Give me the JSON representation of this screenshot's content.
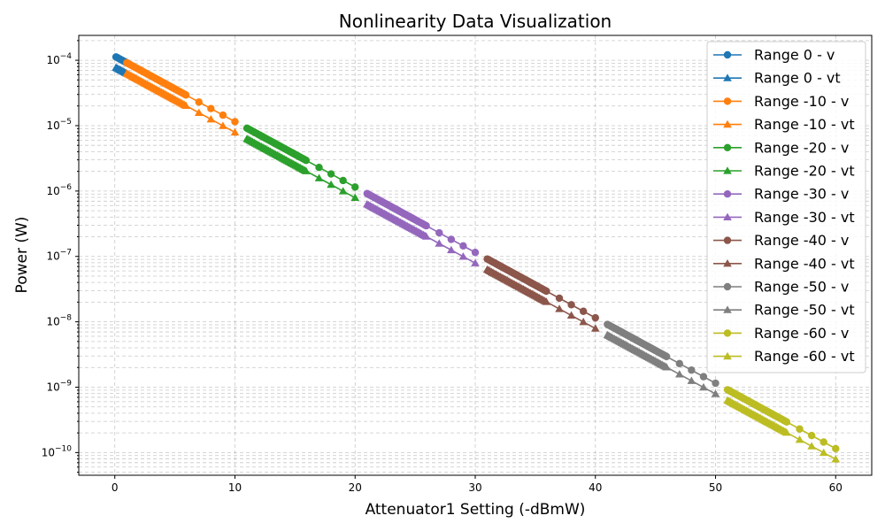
{
  "chart_data": {
    "type": "line",
    "title": "Nonlinearity Data Visualization",
    "xlabel": "Attenuator1 Setting (-dBmW)",
    "ylabel": "Power (W)",
    "xlim": [
      -3,
      63
    ],
    "ylim": [
      4.5e-11,
      0.00024
    ],
    "yscale": "log",
    "grid": true,
    "legend_position": "top-right",
    "x_ticks": [
      0,
      10,
      20,
      30,
      40,
      50,
      60
    ],
    "x_tick_labels": [
      "0",
      "10",
      "20",
      "30",
      "40",
      "50",
      "60"
    ],
    "y_ticks": [
      1e-10,
      1e-09,
      1e-08,
      1e-07,
      1e-06,
      1e-05,
      0.0001
    ],
    "y_tick_labels": [
      "10-10",
      "10-9",
      "10-8",
      "10-7",
      "10-6",
      "10-5",
      "10-4"
    ],
    "series": [
      {
        "name": "Range 0 - v",
        "marker": "circle",
        "color": "#1f77b4",
        "x_start": 0.1,
        "x_end": 1,
        "y_at_x0": 0.000115
      },
      {
        "name": "Range 0 - vt",
        "marker": "triangle",
        "color": "#1f77b4",
        "x_start": 0.1,
        "x_end": 1,
        "y_at_x0": 7.9e-05
      },
      {
        "name": "Range -10 - v",
        "marker": "circle",
        "color": "#ff7f0e",
        "x_start": 1,
        "x_end": 10,
        "y_at_x0": 0.000115
      },
      {
        "name": "Range -10 - vt",
        "marker": "triangle",
        "color": "#ff7f0e",
        "x_start": 1,
        "x_end": 10,
        "y_at_x0": 7.9e-05
      },
      {
        "name": "Range -20 - v",
        "marker": "circle",
        "color": "#2ca02c",
        "x_start": 11,
        "x_end": 20,
        "y_at_x0": 0.000115
      },
      {
        "name": "Range -20 - vt",
        "marker": "triangle",
        "color": "#2ca02c",
        "x_start": 11,
        "x_end": 20,
        "y_at_x0": 7.9e-05
      },
      {
        "name": "Range -30 - v",
        "marker": "circle",
        "color": "#9467bd",
        "x_start": 21,
        "x_end": 30,
        "y_at_x0": 0.000115
      },
      {
        "name": "Range -30 - vt",
        "marker": "triangle",
        "color": "#9467bd",
        "x_start": 21,
        "x_end": 30,
        "y_at_x0": 7.9e-05
      },
      {
        "name": "Range -40 - v",
        "marker": "circle",
        "color": "#8c564b",
        "x_start": 31,
        "x_end": 40,
        "y_at_x0": 0.000115
      },
      {
        "name": "Range -40 - vt",
        "marker": "triangle",
        "color": "#8c564b",
        "x_start": 31,
        "x_end": 40,
        "y_at_x0": 7.9e-05
      },
      {
        "name": "Range -50 - v",
        "marker": "circle",
        "color": "#7f7f7f",
        "x_start": 41,
        "x_end": 50,
        "y_at_x0": 0.000115
      },
      {
        "name": "Range -50 - vt",
        "marker": "triangle",
        "color": "#7f7f7f",
        "x_start": 41,
        "x_end": 50,
        "y_at_x0": 7.9e-05
      },
      {
        "name": "Range -60 - v",
        "marker": "circle",
        "color": "#bcbd22",
        "x_start": 51,
        "x_end": 60,
        "y_at_x0": 0.000115
      },
      {
        "name": "Range -60 - vt",
        "marker": "triangle",
        "color": "#bcbd22",
        "x_start": 51,
        "x_end": 60,
        "y_at_x0": 7.9e-05
      }
    ]
  }
}
